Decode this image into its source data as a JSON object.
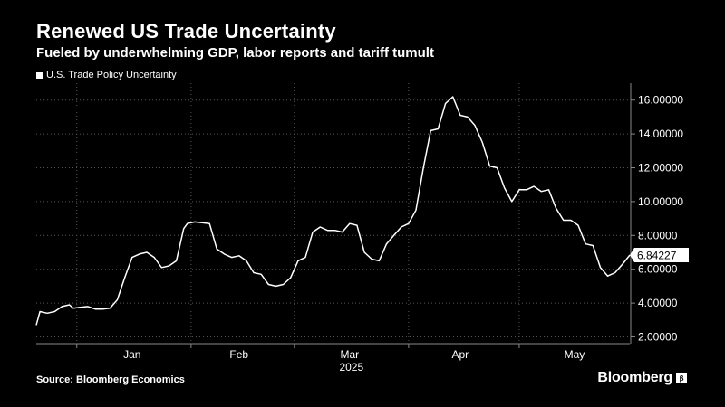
{
  "header": {
    "title": "Renewed US Trade Uncertainty",
    "subtitle": "Fueled by underwhelming GDP, labor reports and tariff tumult"
  },
  "footer": {
    "source": "Source: Bloomberg Economics",
    "brand": "Bloomberg",
    "brand_mark": "β"
  },
  "colors": {
    "background": "#000000",
    "line": "#ffffff",
    "grid": "#555555",
    "text": "#ffffff"
  },
  "chart_data": {
    "type": "line",
    "title": "Renewed US Trade Uncertainty",
    "subtitle": "Fueled by underwhelming GDP, labor reports and tariff tumult",
    "legend_position": "top-left",
    "grid": true,
    "y_axis_side": "right",
    "ylim": [
      1.6,
      17.0
    ],
    "yticks": [
      2,
      4,
      6,
      8,
      10,
      12,
      14,
      16
    ],
    "ytick_labels": [
      "2.00000",
      "4.00000",
      "6.00000",
      "8.00000",
      "10.00000",
      "12.00000",
      "14.00000",
      "16.00000"
    ],
    "xlim": [
      "2024-12-21",
      "2025-05-31"
    ],
    "x_tick_labels": [
      {
        "label": "Jan",
        "center": "2025-01-16"
      },
      {
        "label": "Feb",
        "center": "2025-02-14"
      },
      {
        "label": "Mar",
        "center": "2025-03-16"
      },
      {
        "label": "Apr",
        "center": "2025-04-15"
      },
      {
        "label": "May",
        "center": "2025-05-16"
      }
    ],
    "x_year_label": "2025",
    "x_gridlines": [
      "2025-01-01",
      "2025-02-01",
      "2025-03-01",
      "2025-04-01",
      "2025-05-01"
    ],
    "last_value_label": "6.84227",
    "series": [
      {
        "name": "U.S. Trade Policy Uncertainty",
        "points": [
          [
            "2024-12-21",
            2.7
          ],
          [
            "2024-12-22",
            3.5
          ],
          [
            "2024-12-24",
            3.4
          ],
          [
            "2024-12-26",
            3.5
          ],
          [
            "2024-12-28",
            3.8
          ],
          [
            "2024-12-30",
            3.9
          ],
          [
            "2024-12-31",
            3.7
          ],
          [
            "2025-01-02",
            3.75
          ],
          [
            "2025-01-04",
            3.8
          ],
          [
            "2025-01-06",
            3.65
          ],
          [
            "2025-01-08",
            3.65
          ],
          [
            "2025-01-10",
            3.7
          ],
          [
            "2025-01-12",
            4.2
          ],
          [
            "2025-01-14",
            5.5
          ],
          [
            "2025-01-16",
            6.7
          ],
          [
            "2025-01-18",
            6.9
          ],
          [
            "2025-01-20",
            7.0
          ],
          [
            "2025-01-22",
            6.7
          ],
          [
            "2025-01-24",
            6.1
          ],
          [
            "2025-01-26",
            6.2
          ],
          [
            "2025-01-28",
            6.5
          ],
          [
            "2025-01-30",
            8.4
          ],
          [
            "2025-01-31",
            8.7
          ],
          [
            "2025-02-02",
            8.8
          ],
          [
            "2025-02-04",
            8.75
          ],
          [
            "2025-02-06",
            8.7
          ],
          [
            "2025-02-08",
            7.2
          ],
          [
            "2025-02-10",
            6.9
          ],
          [
            "2025-02-12",
            6.7
          ],
          [
            "2025-02-14",
            6.8
          ],
          [
            "2025-02-16",
            6.5
          ],
          [
            "2025-02-18",
            5.8
          ],
          [
            "2025-02-20",
            5.7
          ],
          [
            "2025-02-22",
            5.1
          ],
          [
            "2025-02-24",
            5.0
          ],
          [
            "2025-02-26",
            5.1
          ],
          [
            "2025-02-28",
            5.5
          ],
          [
            "2025-03-02",
            6.5
          ],
          [
            "2025-03-04",
            6.7
          ],
          [
            "2025-03-06",
            8.2
          ],
          [
            "2025-03-08",
            8.5
          ],
          [
            "2025-03-10",
            8.3
          ],
          [
            "2025-03-12",
            8.3
          ],
          [
            "2025-03-14",
            8.2
          ],
          [
            "2025-03-16",
            8.7
          ],
          [
            "2025-03-18",
            8.6
          ],
          [
            "2025-03-20",
            7.0
          ],
          [
            "2025-03-22",
            6.6
          ],
          [
            "2025-03-24",
            6.5
          ],
          [
            "2025-03-26",
            7.5
          ],
          [
            "2025-03-28",
            8.0
          ],
          [
            "2025-03-30",
            8.5
          ],
          [
            "2025-04-01",
            8.7
          ],
          [
            "2025-04-03",
            9.5
          ],
          [
            "2025-04-05",
            12.0
          ],
          [
            "2025-04-07",
            14.2
          ],
          [
            "2025-04-09",
            14.3
          ],
          [
            "2025-04-11",
            15.8
          ],
          [
            "2025-04-13",
            16.2
          ],
          [
            "2025-04-15",
            15.1
          ],
          [
            "2025-04-17",
            15.0
          ],
          [
            "2025-04-19",
            14.5
          ],
          [
            "2025-04-21",
            13.5
          ],
          [
            "2025-04-23",
            12.1
          ],
          [
            "2025-04-25",
            12.0
          ],
          [
            "2025-04-27",
            10.8
          ],
          [
            "2025-04-29",
            10.0
          ],
          [
            "2025-05-01",
            10.7
          ],
          [
            "2025-05-03",
            10.7
          ],
          [
            "2025-05-05",
            10.9
          ],
          [
            "2025-05-07",
            10.6
          ],
          [
            "2025-05-09",
            10.7
          ],
          [
            "2025-05-11",
            9.6
          ],
          [
            "2025-05-13",
            8.9
          ],
          [
            "2025-05-15",
            8.9
          ],
          [
            "2025-05-17",
            8.6
          ],
          [
            "2025-05-19",
            7.5
          ],
          [
            "2025-05-21",
            7.4
          ],
          [
            "2025-05-23",
            6.1
          ],
          [
            "2025-05-25",
            5.6
          ],
          [
            "2025-05-27",
            5.8
          ],
          [
            "2025-05-29",
            6.3
          ],
          [
            "2025-05-31",
            6.84227
          ]
        ]
      }
    ]
  }
}
